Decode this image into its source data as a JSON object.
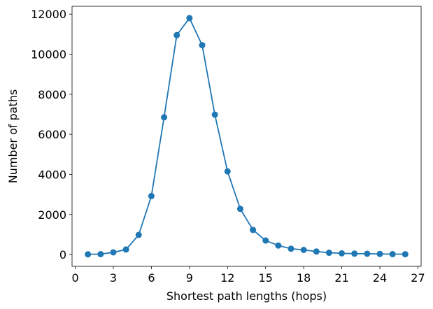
{
  "chart_data": {
    "type": "line",
    "title": "",
    "xlabel": "Shortest path lengths (hops)",
    "ylabel": "Number of paths",
    "xlim": [
      -0.25,
      27.25
    ],
    "ylim": [
      -590,
      12390
    ],
    "x_ticks": [
      0,
      3,
      6,
      9,
      12,
      15,
      18,
      21,
      24,
      27
    ],
    "y_ticks": [
      0,
      2000,
      4000,
      6000,
      8000,
      10000,
      12000
    ],
    "grid": false,
    "legend": "none",
    "marker": "circle",
    "color": "#1f77b4",
    "series": [
      {
        "x": [
          1,
          2,
          3,
          4,
          5,
          6,
          7,
          8,
          9,
          10,
          11,
          12,
          13,
          14,
          15,
          16,
          17,
          18,
          19,
          20,
          21,
          22,
          23,
          24,
          25,
          26
        ],
        "values": [
          10,
          20,
          110,
          250,
          980,
          2920,
          6850,
          10950,
          11800,
          10450,
          6980,
          4150,
          2280,
          1230,
          700,
          450,
          290,
          230,
          150,
          90,
          60,
          45,
          40,
          30,
          20,
          15
        ]
      }
    ]
  }
}
